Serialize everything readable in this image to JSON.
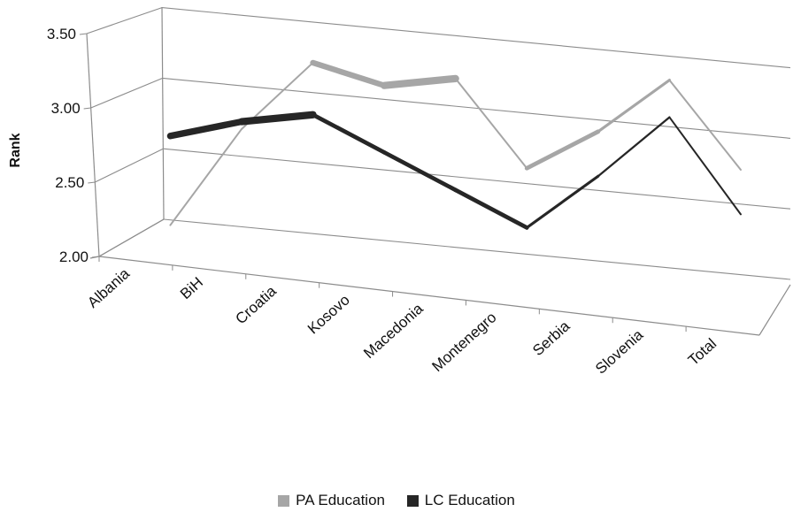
{
  "chart_data": {
    "type": "line",
    "ylabel": "Rank",
    "ylim": [
      2.0,
      3.5
    ],
    "yticks": [
      "2.00",
      "2.50",
      "3.00",
      "3.50"
    ],
    "categories": [
      "Albania",
      "BiH",
      "Croatia",
      "Kosovo",
      "Macedonia",
      "Montenegro",
      "Serbia",
      "Slovenia",
      "Total"
    ],
    "series": [
      {
        "name": "PA Education",
        "color": "#a6a6a6",
        "values": [
          2.1,
          2.8,
          3.3,
          3.2,
          3.3,
          2.75,
          3.05,
          3.45,
          2.9
        ]
      },
      {
        "name": "LC Education",
        "color": "#262626",
        "values": [
          2.7,
          2.85,
          2.95,
          2.75,
          2.55,
          2.35,
          2.75,
          3.2,
          2.6
        ]
      }
    ],
    "grid": true,
    "legend_position": "bottom"
  }
}
